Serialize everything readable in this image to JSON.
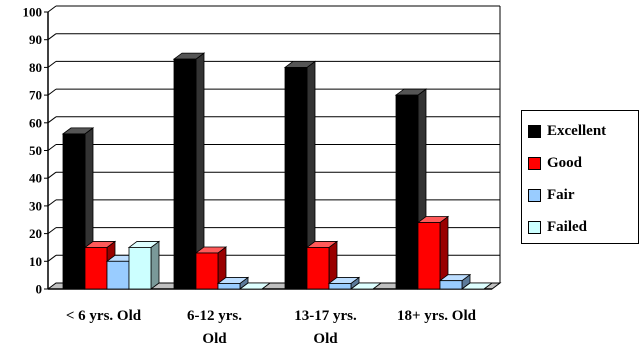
{
  "chart_data": {
    "type": "bar",
    "title": "",
    "xlabel": "",
    "ylabel": "",
    "ylim": [
      0,
      100
    ],
    "yticks": [
      0,
      10,
      20,
      30,
      40,
      50,
      60,
      70,
      80,
      90,
      100
    ],
    "grid": true,
    "legend_position": "right",
    "categories": [
      [
        "< 6 yrs. Old"
      ],
      [
        "6-12 yrs.",
        "Old"
      ],
      [
        "13-17 yrs.",
        "Old"
      ],
      [
        "18+ yrs. Old"
      ]
    ],
    "series": [
      {
        "name": "Excellent",
        "color": "#000000",
        "values": [
          56,
          83,
          80,
          70
        ]
      },
      {
        "name": "Good",
        "color": "#ff0000",
        "values": [
          15,
          13,
          15,
          24
        ]
      },
      {
        "name": "Fair",
        "color": "#99ccff",
        "values": [
          10,
          2,
          2,
          3
        ]
      },
      {
        "name": "Failed",
        "color": "#ccffff",
        "values": [
          15,
          0,
          0,
          0
        ]
      }
    ]
  }
}
